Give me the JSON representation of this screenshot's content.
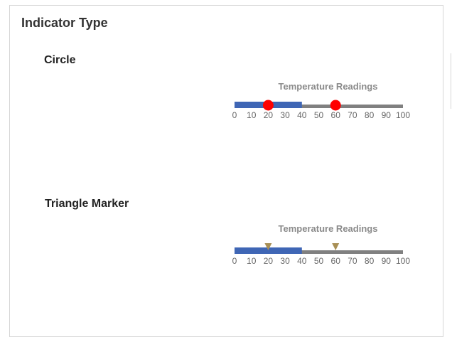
{
  "panel": {
    "title": "Indicator Type"
  },
  "sections": [
    {
      "title": "Circle",
      "gauge": {
        "title": "Temperature Readings",
        "min": 0,
        "max": 100,
        "ticks": [
          "0",
          "10",
          "20",
          "30",
          "40",
          "50",
          "60",
          "70",
          "80",
          "90",
          "100"
        ],
        "range": {
          "start": 0,
          "end": 40
        },
        "markers": [
          20,
          60
        ],
        "marker_shape": "circle",
        "colors": {
          "track": "#808080",
          "range": "#3f66b5",
          "marker": "#ff0000"
        }
      }
    },
    {
      "title": "Triangle Marker",
      "gauge": {
        "title": "Temperature Readings",
        "min": 0,
        "max": 100,
        "ticks": [
          "0",
          "10",
          "20",
          "30",
          "40",
          "50",
          "60",
          "70",
          "80",
          "90",
          "100"
        ],
        "range": {
          "start": 0,
          "end": 40
        },
        "markers": [
          20,
          60
        ],
        "marker_shape": "triangle",
        "colors": {
          "track": "#808080",
          "range": "#3f66b5",
          "marker": "#a88f55"
        }
      }
    }
  ]
}
